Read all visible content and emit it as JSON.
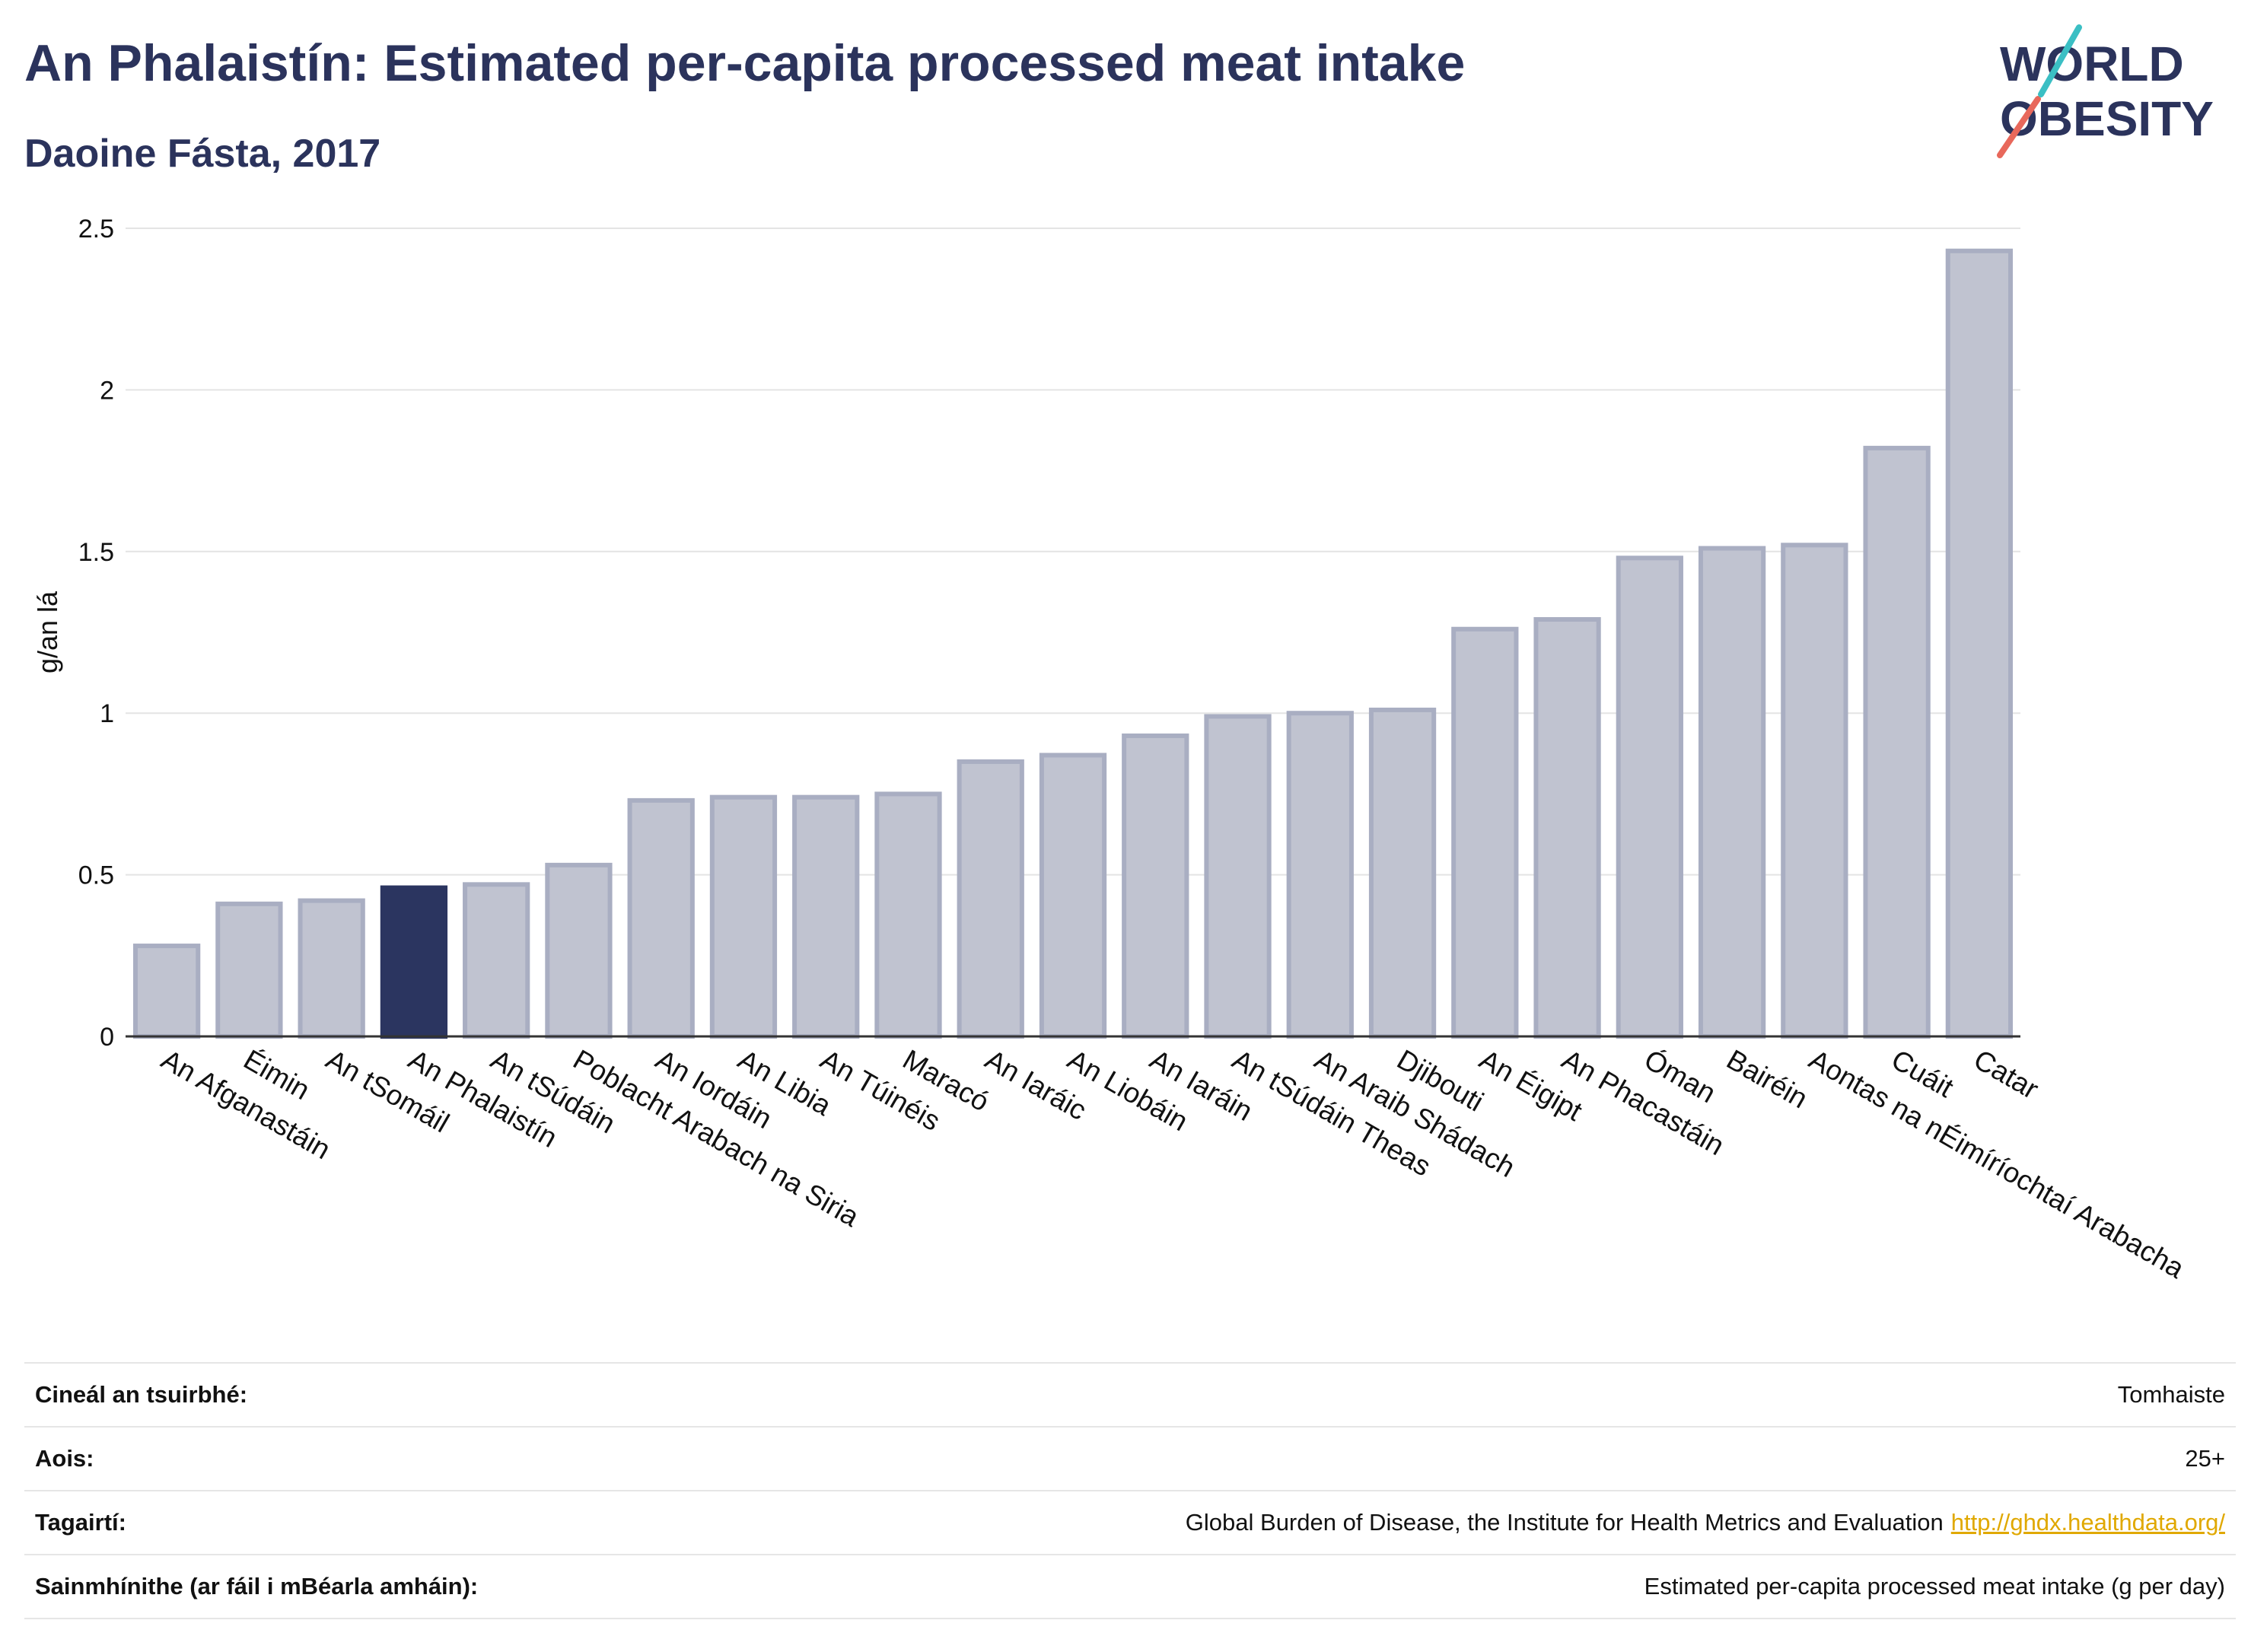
{
  "header": {
    "title": "An Phalaistín: Estimated per-capita processed meat intake",
    "subtitle": "Daoine Fásta, 2017"
  },
  "logo": {
    "line1": "WORLD",
    "line2": "OBESITY"
  },
  "colors": {
    "highlight": "#2b3560",
    "bar_fill": "#c0c3d0",
    "bar_stroke": "#a9aec2",
    "link": "#e0a800"
  },
  "chart_data": {
    "type": "bar",
    "ylabel": "g/an lá",
    "ylim": [
      0,
      2.5
    ],
    "yticks": [
      0,
      0.5,
      1,
      1.5,
      2,
      2.5
    ],
    "ytick_labels": [
      "0",
      "0.5",
      "1",
      "1.5",
      "2",
      "2.5"
    ],
    "grid": true,
    "highlight": "An Phalaistín",
    "categories": [
      "An Afganastáin",
      "Éimin",
      "An tSomáil",
      "An Phalaistín",
      "An tSúdáin",
      "Poblacht Arabach na Siria",
      "An Iordáin",
      "An Libia",
      "An Túinéis",
      "Maracó",
      "An Iaráic",
      "An Liobáin",
      "An Iaráin",
      "An tSúdáin Theas",
      "An Araib Shádach",
      "Djibouti",
      "An Éigipt",
      "An Phacastáin",
      "Óman",
      "Bairéin",
      "Aontas na nÉimíríochtaí Arabacha",
      "Cuáit",
      "Catar"
    ],
    "values": [
      0.28,
      0.41,
      0.42,
      0.46,
      0.47,
      0.53,
      0.73,
      0.74,
      0.74,
      0.75,
      0.85,
      0.87,
      0.93,
      0.99,
      1.0,
      1.01,
      1.26,
      1.29,
      1.48,
      1.51,
      1.52,
      1.82,
      2.43
    ]
  },
  "info": [
    {
      "key": "Cineál an tsuirbhé:",
      "value": "Tomhaiste"
    },
    {
      "key": "Aois:",
      "value": "25+"
    },
    {
      "key": "Tagairtí:",
      "value": "Global Burden of Disease, the Institute for Health Metrics and Evaluation",
      "link": "http://ghdx.healthdata.org/"
    },
    {
      "key": "Sainmhínithe (ar fáil i mBéarla amháin):",
      "value": "Estimated per-capita processed meat intake (g per day)"
    }
  ]
}
